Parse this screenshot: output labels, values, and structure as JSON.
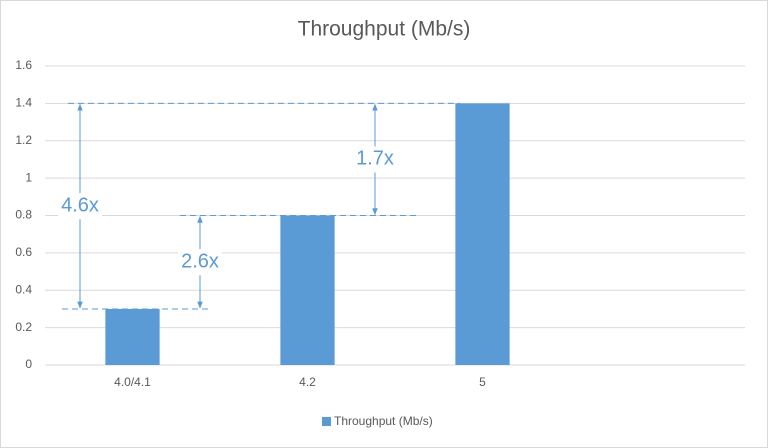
{
  "chart_data": {
    "type": "bar",
    "title": "Throughput (Mb/s)",
    "categories": [
      "4.0/4.1",
      "4.2",
      "5",
      null
    ],
    "series": [
      {
        "name": "Throughput (Mb/s)",
        "color": "#5b9bd5",
        "values": [
          0.3,
          0.8,
          1.4,
          null
        ]
      }
    ],
    "ylim": [
      0,
      1.6
    ],
    "yticks": [
      0,
      0.2,
      0.4,
      0.6,
      0.8,
      1,
      1.2,
      1.4,
      1.6
    ],
    "grid": true,
    "legend": "bottom",
    "annotations": [
      "4.6x",
      "2.6x",
      "1.7x"
    ]
  }
}
